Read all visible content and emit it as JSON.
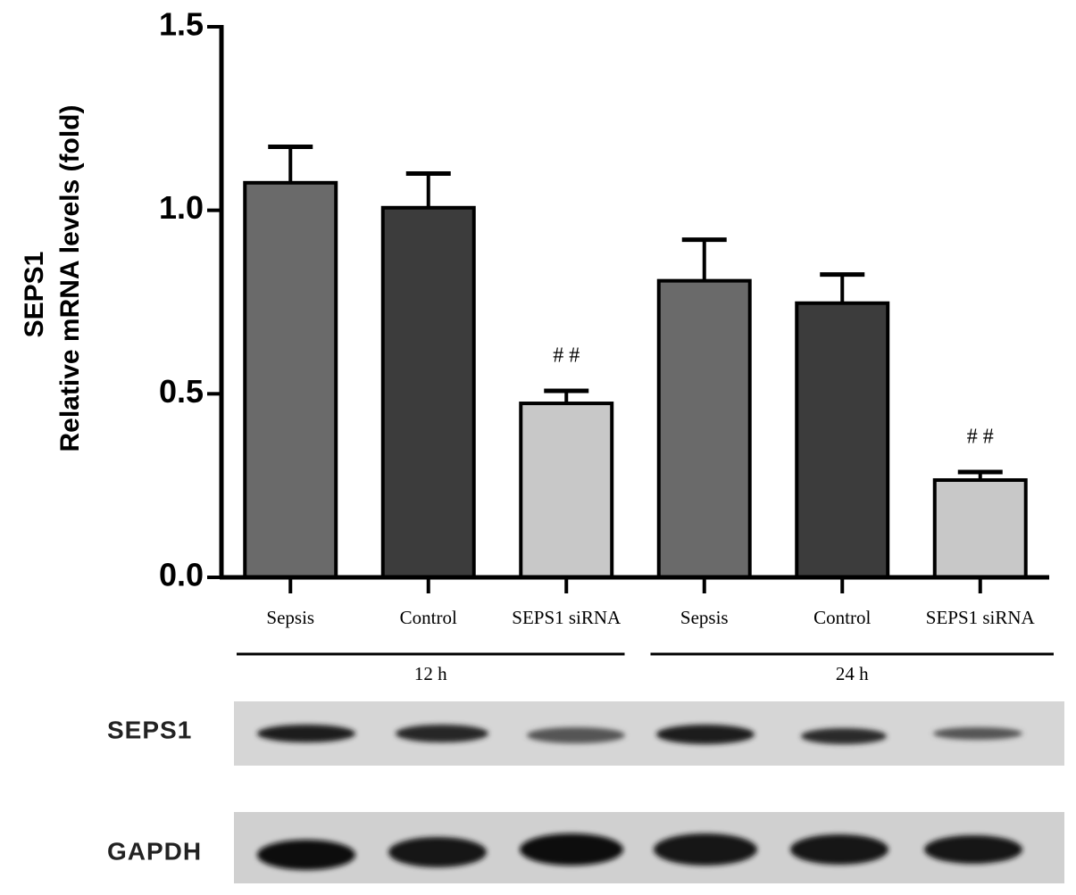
{
  "chart_data": {
    "type": "bar",
    "y_label": [
      "SEPS1",
      "Relative mRNA levels (fold)"
    ],
    "categories": [
      "Sepsis",
      "Control",
      "SEPS1 siRNA",
      "Sepsis",
      "Control",
      "SEPS1 siRNA"
    ],
    "values": [
      1.075,
      1.007,
      0.474,
      0.808,
      0.747,
      0.265
    ],
    "errors": [
      0.098,
      0.093,
      0.034,
      0.112,
      0.078,
      0.022
    ],
    "colors": [
      "#6a6a6a",
      "#3c3c3c",
      "#c8c8c8",
      "#6a6a6a",
      "#3c3c3c",
      "#c8c8c8"
    ],
    "significance": [
      null,
      null,
      "# #",
      null,
      null,
      "# #"
    ],
    "groups": [
      "12 h",
      "24 h"
    ],
    "ylim": [
      0,
      1.5
    ],
    "yticks": [
      {
        "value": 0,
        "label": "0.0"
      },
      0.5,
      {
        "value": 1,
        "label": "1.0"
      },
      {
        "value": 1.5,
        "label": "1.5"
      }
    ],
    "blots": [
      "SEPS1",
      "GAPDH"
    ]
  }
}
